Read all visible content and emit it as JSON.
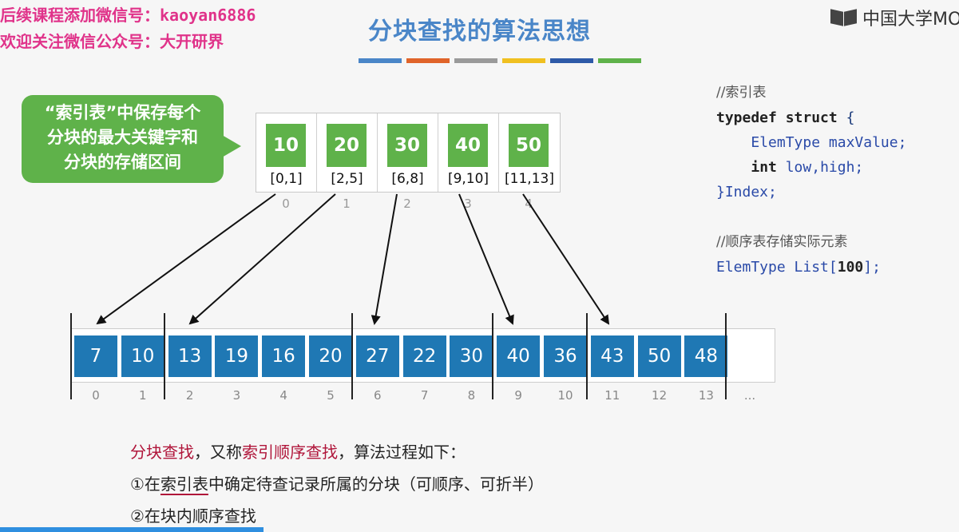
{
  "watermark": {
    "line1": "后续课程添加微信号：kaoyan6886",
    "line2": "欢迎关注微信公众号：大开研界"
  },
  "title": "分块查找的算法思想",
  "title_bar_colors": [
    "#4a86c8",
    "#e0642a",
    "#9a9a9a",
    "#f0c020",
    "#2e5aa8",
    "#5fb24a"
  ],
  "logo": {
    "icon": "mooc-book-icon",
    "text": "中国大学MOOC"
  },
  "callout": {
    "line1": "“索引表”中保存每个",
    "line2": "分块的最大关键字和",
    "line3": "分块的存储区间"
  },
  "index_table": {
    "entries": [
      {
        "max": "10",
        "range": "[0,1]",
        "index": "0"
      },
      {
        "max": "20",
        "range": "[2,5]",
        "index": "1"
      },
      {
        "max": "30",
        "range": "[6,8]",
        "index": "2"
      },
      {
        "max": "40",
        "range": "[9,10]",
        "index": "3"
      },
      {
        "max": "50",
        "range": "[11,13]",
        "index": "4"
      }
    ],
    "color": "#5fb24a"
  },
  "list": {
    "values": [
      "7",
      "10",
      "13",
      "19",
      "16",
      "20",
      "27",
      "22",
      "30",
      "40",
      "36",
      "43",
      "50",
      "48"
    ],
    "indices": [
      "0",
      "1",
      "2",
      "3",
      "4",
      "5",
      "6",
      "7",
      "8",
      "9",
      "10",
      "11",
      "12",
      "13"
    ],
    "ellipsis": "...",
    "color": "#1f78b4"
  },
  "code": {
    "comment1": "//索引表",
    "kw_typedef": "typedef",
    "kw_struct": "struct",
    "brace_open": "{",
    "type1": "ElemType",
    "field1": "maxValue;",
    "kw_int": "int",
    "field2": "low,high;",
    "close": "}Index;",
    "comment2": "//顺序表存储实际元素",
    "type2": "ElemType",
    "list_decl_a": "List[",
    "list_size": "100",
    "list_decl_b": "];"
  },
  "description": {
    "p1_a": "分块查找",
    "p1_b": "，又称",
    "p1_c": "索引顺序查找",
    "p1_d": "，算法过程如下：",
    "p2_a": "①在",
    "p2_b": "索引表",
    "p2_c": "中确定待查记录所属的分块（可顺序、可折半）",
    "p3": "②在块内顺序查找"
  }
}
